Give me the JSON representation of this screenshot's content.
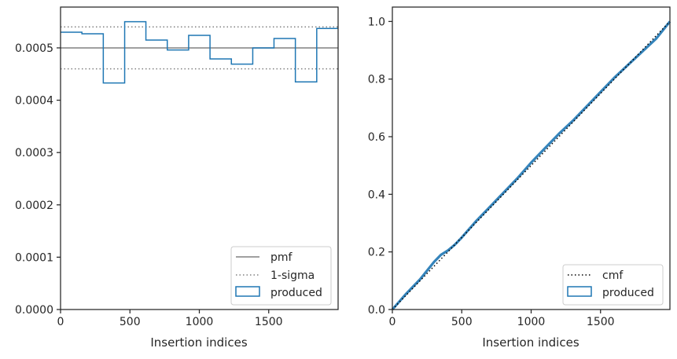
{
  "chart_data": [
    {
      "type": "step-histogram",
      "xlabel": "Insertion indices",
      "ylabel": "",
      "xlim": [
        0,
        2000
      ],
      "ylim": [
        0,
        0.000578
      ],
      "xticks": [
        0,
        500,
        1000,
        1500
      ],
      "xtick_labels": [
        "0",
        "500",
        "1000",
        "1500"
      ],
      "yticks": [
        0,
        0.0001,
        0.0002,
        0.0003,
        0.0004,
        0.0005
      ],
      "ytick_labels": [
        "0.0000",
        "0.0001",
        "0.0002",
        "0.0003",
        "0.0004",
        "0.0005"
      ],
      "legend_position": "bottom-right",
      "series": [
        {
          "name": "produced",
          "kind": "step",
          "color": "#1f77b4",
          "bin_edges": [
            0,
            154,
            308,
            462,
            615,
            769,
            923,
            1077,
            1231,
            1385,
            1538,
            1692,
            1846,
            2000
          ],
          "values": [
            0.00053,
            0.000527,
            0.000433,
            0.00055,
            0.000515,
            0.000496,
            0.000524,
            0.000479,
            0.000469,
            0.0005,
            0.000518,
            0.000435,
            0.000537
          ]
        },
        {
          "name": "pmf",
          "kind": "hline",
          "color": "#808080",
          "y": 0.0005
        },
        {
          "name": "1-sigma",
          "kind": "hline-dotted",
          "color": "#808080",
          "y": [
            0.00046,
            0.00054
          ]
        }
      ],
      "legend": [
        "pmf",
        "1-sigma",
        "produced"
      ]
    },
    {
      "type": "line",
      "xlabel": "Insertion indices",
      "ylabel": "",
      "xlim": [
        0,
        2000
      ],
      "ylim": [
        0,
        1.05
      ],
      "xticks": [
        0,
        500,
        1000,
        1500
      ],
      "xtick_labels": [
        "0",
        "500",
        "1000",
        "1500"
      ],
      "yticks": [
        0,
        0.2,
        0.4,
        0.6,
        0.8,
        1.0
      ],
      "ytick_labels": [
        "0.0",
        "0.2",
        "0.4",
        "0.6",
        "0.8",
        "1.0"
      ],
      "legend_position": "bottom-right",
      "series": [
        {
          "name": "cmf",
          "kind": "dotted",
          "color": "#000000",
          "x": [
            0,
            2000
          ],
          "y": [
            0,
            1.0
          ]
        },
        {
          "name": "produced",
          "kind": "band",
          "color": "#1f77b4",
          "x": [
            0,
            100,
            200,
            300,
            350,
            400,
            450,
            500,
            600,
            700,
            800,
            900,
            1000,
            1100,
            1200,
            1300,
            1400,
            1500,
            1600,
            1700,
            1800,
            1900,
            2000
          ],
          "y": [
            0,
            0.055,
            0.105,
            0.165,
            0.19,
            0.205,
            0.225,
            0.25,
            0.305,
            0.355,
            0.405,
            0.455,
            0.51,
            0.56,
            0.61,
            0.655,
            0.705,
            0.755,
            0.805,
            0.85,
            0.895,
            0.94,
            1.0
          ]
        }
      ],
      "legend": [
        "cmf",
        "produced"
      ]
    }
  ]
}
